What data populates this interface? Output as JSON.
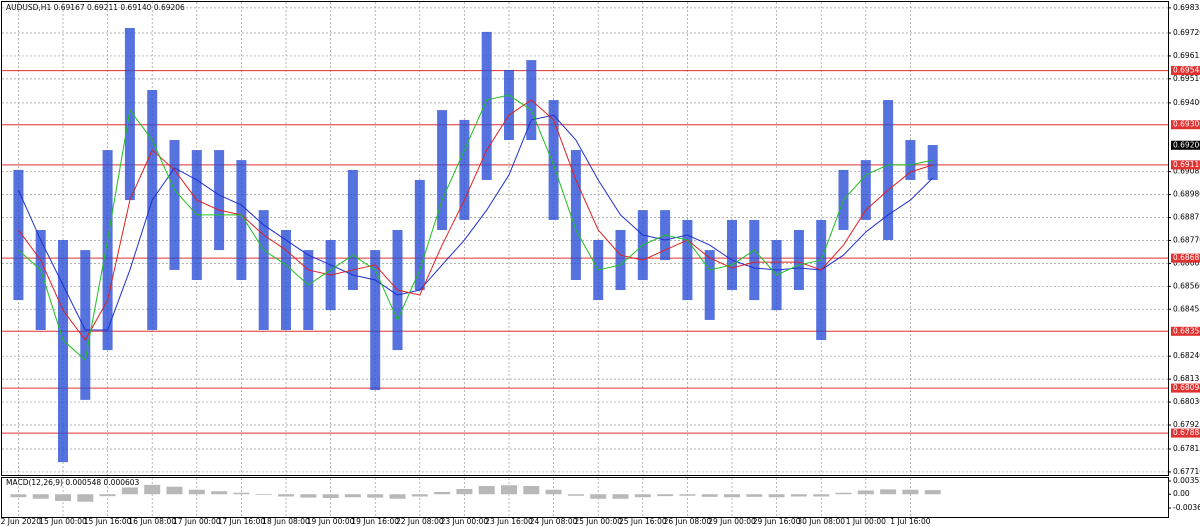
{
  "chart_data": [
    {
      "type": "range",
      "title": "AUDUSD,H1  0.69167 0.69211 0.69140 0.69206",
      "categories": [
        "12 Jun 2020",
        null,
        "15 Jun 00:00",
        null,
        "15 Jun 16:00",
        null,
        "16 Jun 08:00",
        null,
        "17 Jun 00:00",
        null,
        "17 Jun 16:00",
        null,
        "18 Jun 08:00",
        null,
        "19 Jun 00:00",
        null,
        "19 Jun 16:00",
        null,
        "22 Jun 08:00",
        null,
        "23 Jun 00:00",
        null,
        "23 Jun 16:00",
        null,
        "24 Jun 08:00",
        null,
        "25 Jun 00:00",
        null,
        "25 Jun 16:00",
        null,
        "26 Jun 08:00",
        null,
        "29 Jun 00:00",
        null,
        "29 Jun 16:00",
        null,
        "30 Jun 08:00",
        null,
        "1 Jul 00:00",
        null,
        "1 Jul 16:00",
        null
      ],
      "high": [
        0.69093,
        0.68818,
        0.68772,
        0.68726,
        0.69184,
        0.69743,
        0.69459,
        0.6923,
        0.69184,
        0.69184,
        0.69138,
        0.68909,
        0.68818,
        0.68726,
        0.68772,
        0.69093,
        0.68726,
        0.68818,
        0.69047,
        0.69367,
        0.69322,
        0.69725,
        0.69551,
        0.69596,
        0.69413,
        0.69184,
        0.68772,
        0.68818,
        0.68909,
        0.68909,
        0.68864,
        0.68726,
        0.68864,
        0.68864,
        0.68772,
        0.68818,
        0.68864,
        0.69093,
        0.69138,
        0.69413,
        0.6923,
        0.69207
      ],
      "low": [
        0.68497,
        0.6836,
        0.67755,
        0.6804,
        0.68268,
        0.68955,
        0.6836,
        0.68635,
        0.68589,
        0.68726,
        0.68589,
        0.6836,
        0.6836,
        0.6836,
        0.68451,
        0.68543,
        0.68085,
        0.68268,
        0.68543,
        0.68818,
        0.68864,
        0.69047,
        0.6923,
        0.6923,
        0.68864,
        0.68589,
        0.68497,
        0.68543,
        0.68589,
        0.6868,
        0.68497,
        0.68406,
        0.68543,
        0.68497,
        0.68451,
        0.68543,
        0.68314,
        0.68818,
        0.68864,
        0.68772,
        0.69047,
        0.69047
      ],
      "color": "#2c4fd6",
      "lines": [
        {
          "color": "#1f2fd0",
          "values": [
            0.69001,
            0.68772,
            0.68566,
            0.6836,
            0.6836,
            0.68635,
            0.68955,
            0.69102,
            0.69047,
            0.68978,
            0.68932,
            0.68841,
            0.68772,
            0.68703,
            0.68658,
            0.68612,
            0.68589,
            0.6852,
            0.68543,
            0.68658,
            0.68772,
            0.68909,
            0.6907,
            0.69322,
            0.69344,
            0.6923,
            0.69047,
            0.68887,
            0.68795,
            0.68772,
            0.68795,
            0.68749,
            0.6868,
            0.68644,
            0.68635,
            0.68644,
            0.68635,
            0.68703,
            0.68809,
            0.68887,
            0.68955,
            0.69056
          ]
        },
        {
          "color": "#e02020",
          "values": [
            0.68818,
            0.6868,
            0.68451,
            0.68314,
            0.68497,
            0.68955,
            0.69184,
            0.69093,
            0.68955,
            0.68909,
            0.68887,
            0.68795,
            0.68726,
            0.68635,
            0.68612,
            0.68635,
            0.68658,
            0.68543,
            0.6852,
            0.68749,
            0.68955,
            0.69184,
            0.69344,
            0.69413,
            0.69322,
            0.69047,
            0.68818,
            0.68703,
            0.6868,
            0.68726,
            0.68772,
            0.6869,
            0.68644,
            0.68671,
            0.68671,
            0.68671,
            0.68635,
            0.68749,
            0.68909,
            0.69001,
            0.69083,
            0.69116
          ]
        },
        {
          "color": "#20c020",
          "values": [
            0.68726,
            0.68635,
            0.68314,
            0.68222,
            0.68772,
            0.69367,
            0.6923,
            0.69001,
            0.68887,
            0.68887,
            0.68887,
            0.68726,
            0.68658,
            0.68566,
            0.68635,
            0.68703,
            0.68635,
            0.68406,
            0.68635,
            0.68955,
            0.69184,
            0.69413,
            0.69436,
            0.69367,
            0.69116,
            0.68818,
            0.68635,
            0.68658,
            0.68749,
            0.68795,
            0.68772,
            0.68635,
            0.68658,
            0.68726,
            0.68612,
            0.68658,
            0.6868,
            0.68955,
            0.6907,
            0.69116,
            0.69116,
            0.69138
          ]
        }
      ],
      "ylim": [
        0.67696,
        0.69862
      ],
      "yticks": [
        0.69835,
        {
          "value": 0.6972,
          "label": "0.69720"
        },
        0.69615,
        {
          "value": 0.6951,
          "label": "0.69510"
        },
        {
          "value": 0.694,
          "label": "0.69400"
        },
        0.69085,
        {
          "value": 0.6898,
          "label": "0.68980"
        },
        0.68875,
        {
          "value": 0.6877,
          "label": "0.68770"
        },
        0.68665,
        {
          "value": 0.6856,
          "label": "0.68560"
        },
        0.68455,
        {
          "value": 0.6824,
          "label": "0.68240"
        },
        0.68135,
        {
          "value": 0.6803,
          "label": "0.68030"
        },
        0.67925,
        0.67815,
        {
          "value": 0.6771,
          "label": "0.67710"
        }
      ],
      "levels": [
        0.69548,
        {
          "value": 0.693,
          "label": "0.69300"
        },
        0.69116,
        0.68689,
        0.68354,
        0.68094,
        0.67888
      ],
      "level_color": "#e03030",
      "last_price": 0.69206,
      "grid": true
    },
    {
      "type": "bar",
      "title": "MACD(12,26,9) 0.000548 0.000603",
      "values": [
        -0.0008,
        -0.0012,
        -0.0018,
        -0.002,
        -0.0005,
        0.0018,
        0.0025,
        0.002,
        0.0012,
        0.0008,
        0.0004,
        -0.0002,
        -0.0006,
        -0.0009,
        -0.001,
        -0.0008,
        -0.0009,
        -0.0012,
        -0.0006,
        0.0006,
        0.0014,
        0.0022,
        0.0024,
        0.0022,
        0.0012,
        -0.0004,
        -0.0012,
        -0.0012,
        -0.0008,
        -0.0005,
        -0.0004,
        -0.0007,
        -0.0008,
        -0.0007,
        -0.0008,
        -0.0006,
        -0.0006,
        0.0004,
        0.001,
        0.0013,
        0.0012,
        0.0011
      ],
      "color": "#b8b8b8",
      "ylim": [
        -0.00606,
        0.00432
      ],
      "yticks": [
        0.003523,
        {
          "value": 0,
          "label": "0.00"
        },
        -0.00367
      ]
    }
  ]
}
